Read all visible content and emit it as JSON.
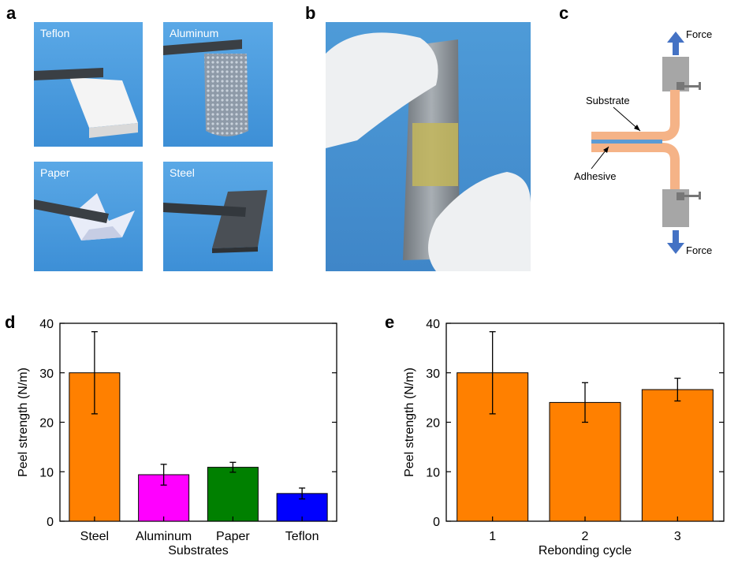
{
  "panels": {
    "a": {
      "label": "a",
      "photos": [
        {
          "caption": "Teflon"
        },
        {
          "caption": "Aluminum"
        },
        {
          "caption": "Paper"
        },
        {
          "caption": "Steel"
        }
      ]
    },
    "b": {
      "label": "b"
    },
    "c": {
      "label": "c",
      "force_top": "Force",
      "force_bottom": "Force",
      "substrate": "Substrate",
      "adhesive": "Adhesive"
    },
    "d": {
      "label": "d"
    },
    "e": {
      "label": "e"
    }
  },
  "colors": {
    "photo_blue": "#4f9fe0",
    "substrate": "#f5b387",
    "adhesive": "#5b9bd5",
    "clamp": "#a6a6a6",
    "arrow": "#4472c4"
  },
  "chart_data": [
    {
      "id": "d",
      "type": "bar",
      "categories": [
        "Steel",
        "Aluminum",
        "Paper",
        "Teflon"
      ],
      "values": [
        30,
        9.4,
        10.9,
        5.6
      ],
      "errors": [
        8.3,
        2.1,
        1.0,
        1.1
      ],
      "colors": [
        "#ff8000",
        "#ff00ff",
        "#008000",
        "#0000ff"
      ],
      "xlabel": "Substrates",
      "ylabel": "Peel strength (N/m)",
      "ylim": [
        0,
        40
      ],
      "yticks": [
        0,
        10,
        20,
        30,
        40
      ]
    },
    {
      "id": "e",
      "type": "bar",
      "categories": [
        "1",
        "2",
        "3"
      ],
      "values": [
        30,
        24,
        26.6
      ],
      "errors": [
        8.3,
        4.0,
        2.3
      ],
      "colors": [
        "#ff8000",
        "#ff8000",
        "#ff8000"
      ],
      "xlabel": "Rebonding cycle",
      "ylabel": "Peel strength (N/m)",
      "ylim": [
        0,
        40
      ],
      "yticks": [
        0,
        10,
        20,
        30,
        40
      ]
    }
  ]
}
